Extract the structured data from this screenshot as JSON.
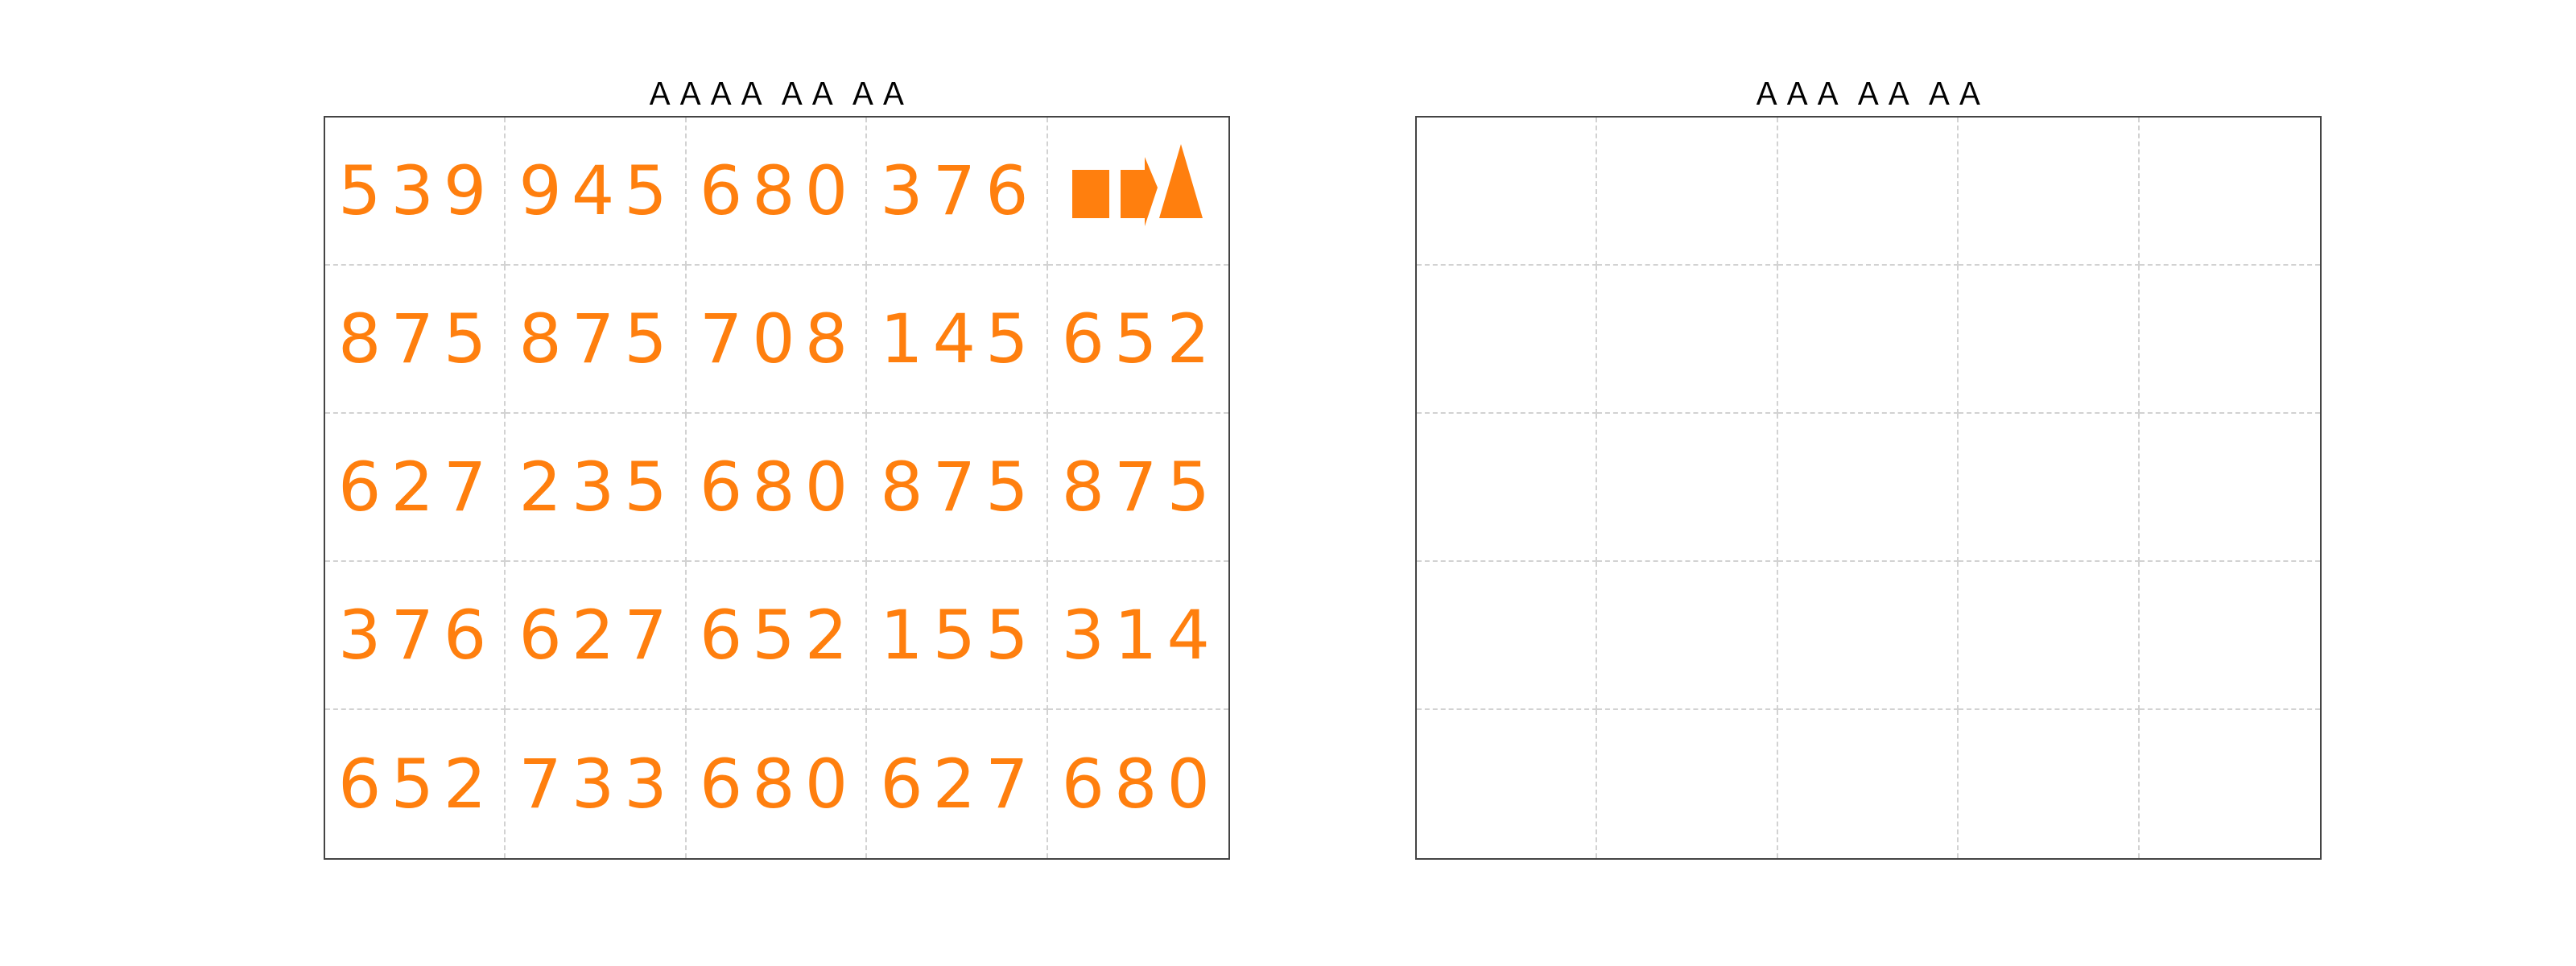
{
  "left_panel": {
    "title": "ＡＡＡＡ ＡＡ ＡＡ",
    "accent_color": "#ff7f0e",
    "cells": [
      [
        "539",
        "945",
        "680",
        "376",
        null
      ],
      [
        "875",
        "875",
        "708",
        "145",
        "652"
      ],
      [
        "627",
        "235",
        "680",
        "875",
        "875"
      ],
      [
        "376",
        "627",
        "652",
        "155",
        "314"
      ],
      [
        "652",
        "733",
        "680",
        "627",
        "680"
      ]
    ],
    "symbol_cell": {
      "row": 0,
      "col": 4,
      "icons": [
        "square-icon",
        "arrow-right-icon",
        "triangle-icon"
      ]
    }
  },
  "right_panel": {
    "title": "ＡＡＡ ＡＡ ＡＡ",
    "rows": 5,
    "cols": 5
  }
}
